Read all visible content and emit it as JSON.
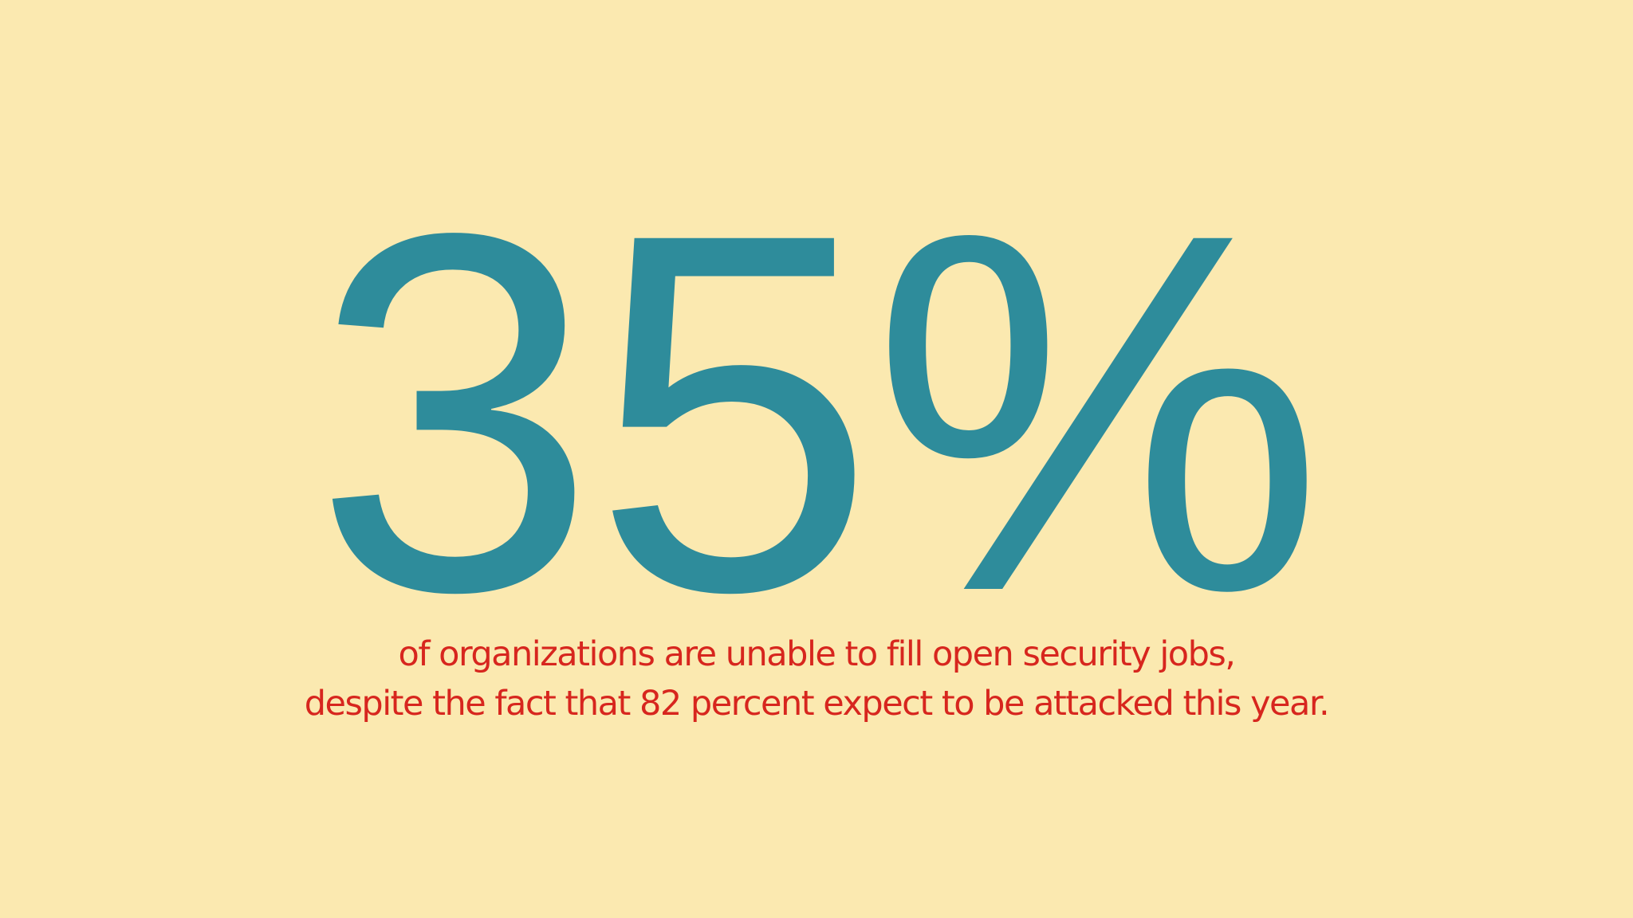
{
  "slide": {
    "statistic": "35%",
    "caption": [
      "of organizations are unable to fill open security jobs,",
      "despite the fact that 82 percent expect to be attacked this year."
    ]
  }
}
